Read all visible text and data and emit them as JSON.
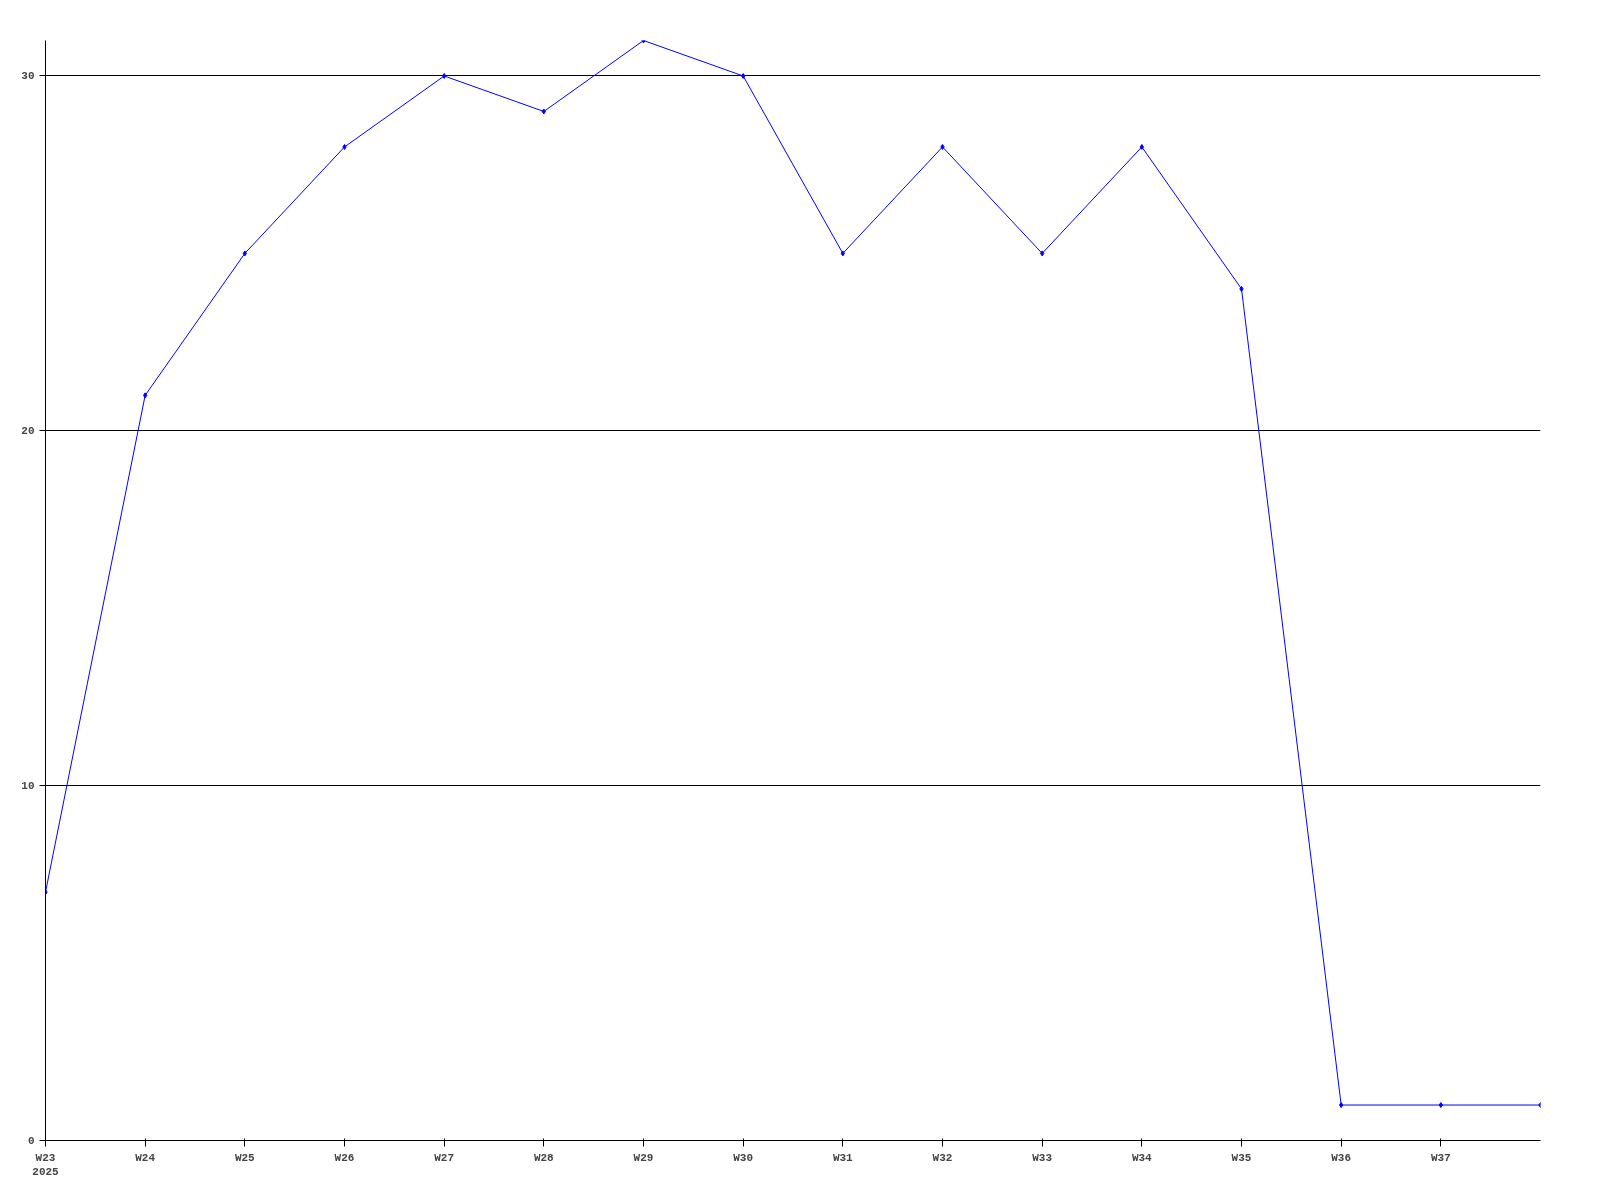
{
  "chart_data": {
    "type": "line",
    "categories": [
      "W23\n2025",
      "W24",
      "W25",
      "W26",
      "W27",
      "W28",
      "W29",
      "W30",
      "W31",
      "W32",
      "W33",
      "W34",
      "W35",
      "W36",
      "W37",
      null
    ],
    "series": [
      {
        "color": "#0000ff",
        "values": [
          7,
          21,
          25,
          28,
          30,
          29,
          31,
          30,
          25,
          28,
          25,
          28,
          24,
          1,
          1,
          1
        ]
      }
    ],
    "ylim": [
      0,
      31
    ],
    "yticks": [
      0,
      10,
      20,
      30
    ],
    "grid": "y",
    "marker": "diamond",
    "line_style": "solid"
  }
}
